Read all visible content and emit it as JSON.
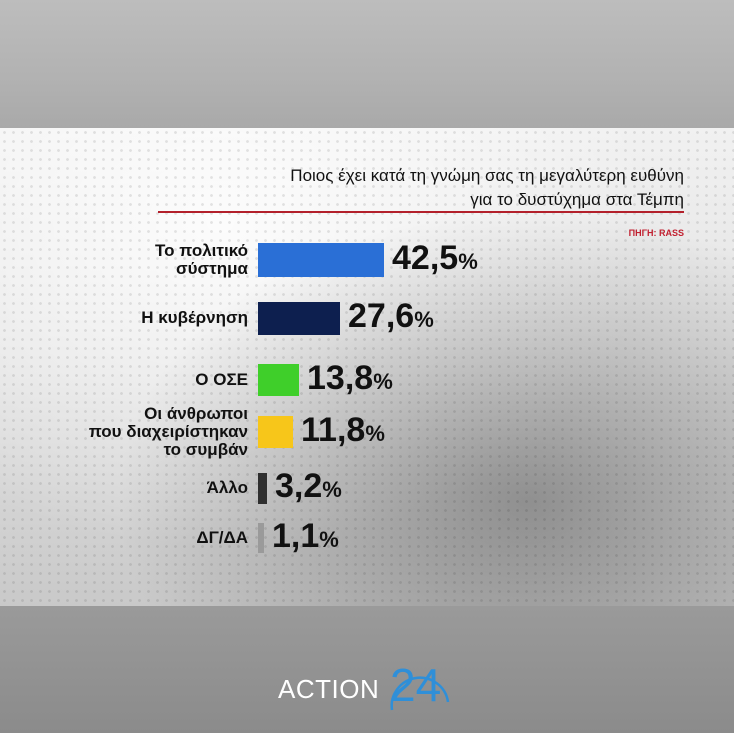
{
  "chart_data": {
    "type": "bar",
    "title_lines": [
      "Ποιος έχει κατά τη γνώμη σας τη μεγαλύτερη ευθύνη",
      "για το δυστύχημα στα Τέμπη"
    ],
    "source": "ΠΗΓΗ: RASS",
    "categories": [
      [
        "Το πολιτικό",
        "σύστημα"
      ],
      [
        "Η κυβέρνηση"
      ],
      [
        "Ο ΟΣΕ"
      ],
      [
        "Οι άνθρωποι",
        "που διαχειρίστηκαν",
        "το συμβάν"
      ],
      [
        "Άλλο"
      ],
      [
        "ΔΓ/ΔΑ"
      ]
    ],
    "values": [
      42.5,
      27.6,
      13.8,
      11.8,
      3.2,
      1.1
    ],
    "value_labels": [
      "42,5",
      "27,6",
      "13,8",
      "11,8",
      "3,2",
      "1,1"
    ],
    "value_suffix": "%",
    "colors": [
      "#2a6fd6",
      "#0d1f4f",
      "#3fcf2a",
      "#f7c61a",
      "#2f2f2f",
      "#9a9a9a"
    ],
    "xlim": [
      0,
      42.5
    ],
    "orientation": "horizontal"
  },
  "logo": {
    "text": "ACTION",
    "number": "24"
  }
}
